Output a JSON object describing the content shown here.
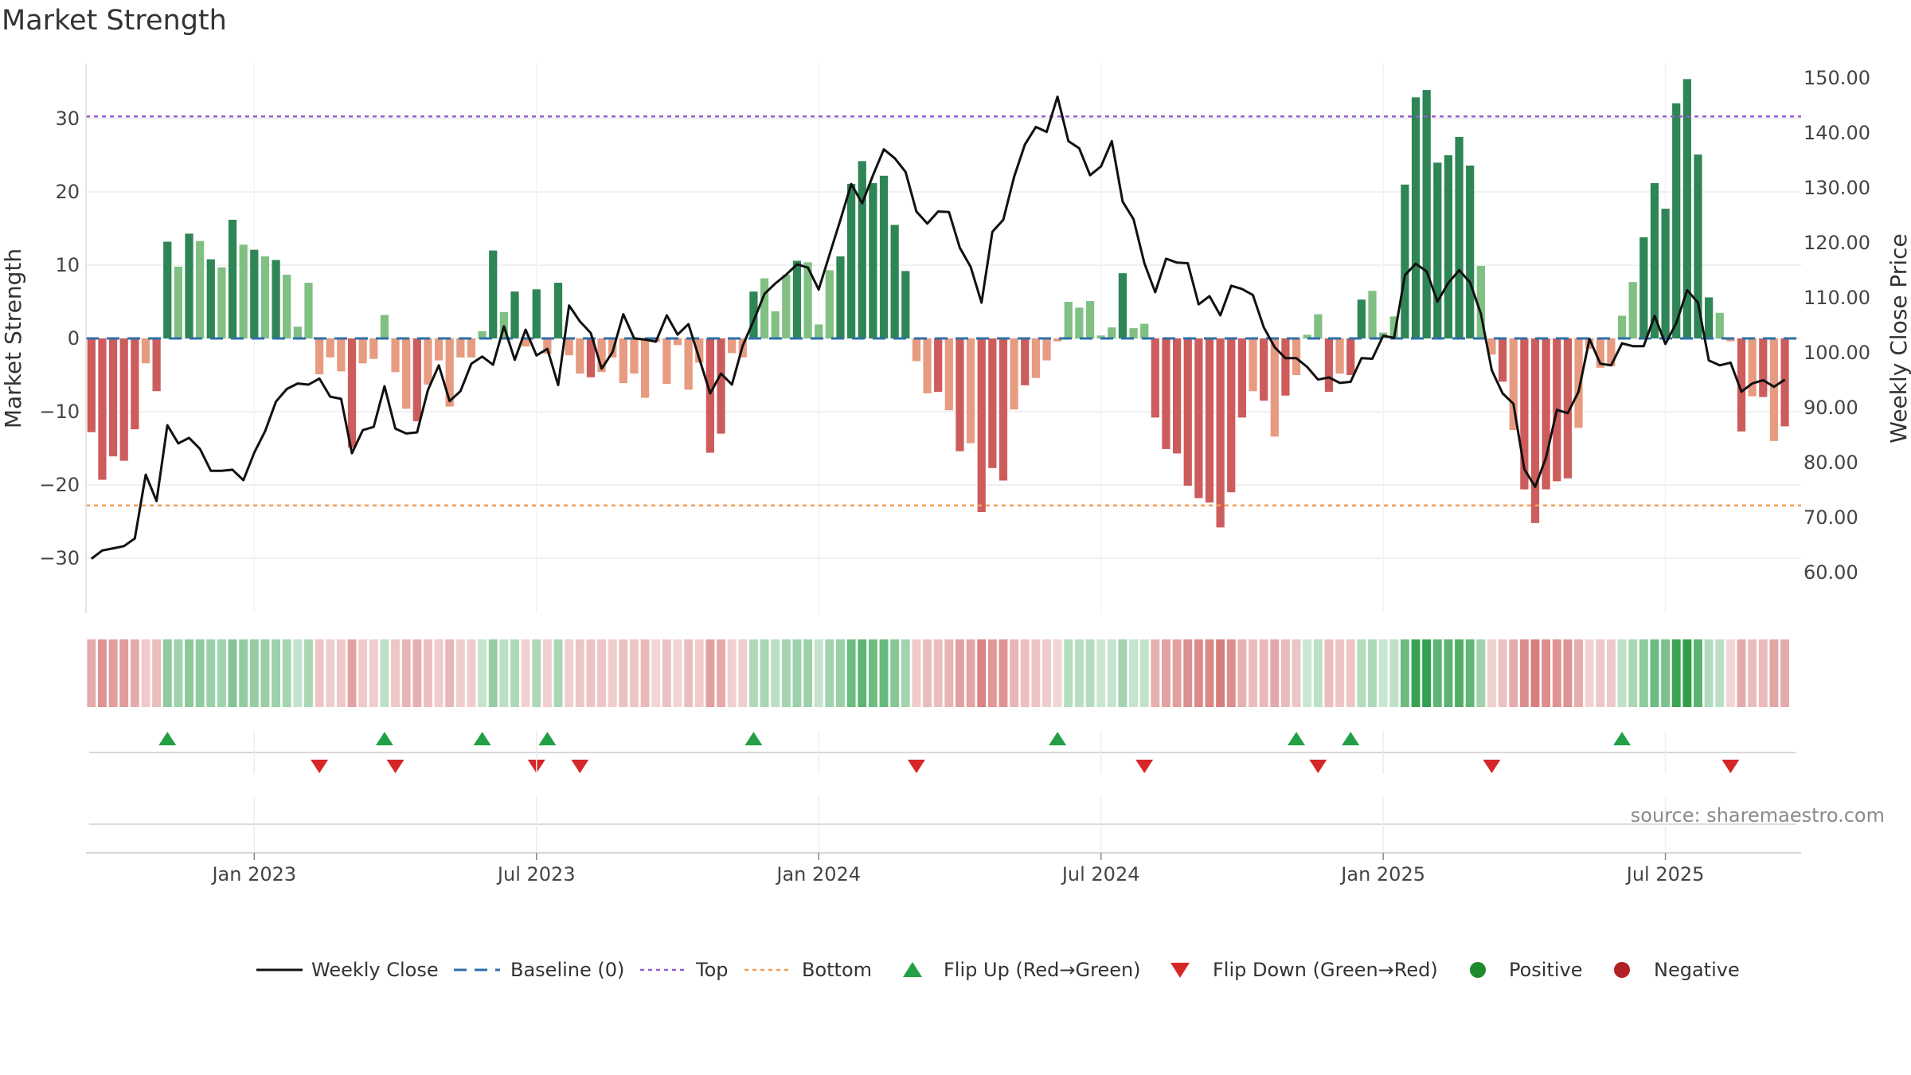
{
  "source_label": "source: sharemaestro.com",
  "chart_data": {
    "type": "bar",
    "title": "Market Strength",
    "ylabel": "Market Strength",
    "y2label": "Weekly Close Price",
    "ylim": [
      -37.5,
      37.5
    ],
    "y2lim": [
      52.6,
      152.6
    ],
    "y_ticks": [
      "30",
      "20",
      "10",
      "0",
      "−10",
      "−20",
      "−30"
    ],
    "y_tick_values": [
      30,
      20,
      10,
      0,
      -10,
      -20,
      -30
    ],
    "y2_ticks": [
      "150.00",
      "140.00",
      "130.00",
      "120.00",
      "110.00",
      "100.00",
      "90.00",
      "80.00",
      "70.00",
      "60.00"
    ],
    "y2_tick_values": [
      150,
      140,
      130,
      120,
      110,
      100,
      90,
      80,
      70,
      60
    ],
    "x_ticks": [
      "Jan 2023",
      "Jul 2023",
      "Jan 2024",
      "Jul 2024",
      "Jan 2025",
      "Jul 2025"
    ],
    "x_tick_weeks": [
      15,
      41,
      67,
      93,
      119,
      145
    ],
    "top_level": 30.3,
    "bottom_level": -22.8,
    "weeks": 158,
    "strength": [
      -12.8,
      -19.3,
      -16.1,
      -16.7,
      -12.4,
      -3.4,
      -7.2,
      13.2,
      9.8,
      14.3,
      13.3,
      10.8,
      9.7,
      16.2,
      12.8,
      12.1,
      11.2,
      10.7,
      8.7,
      1.6,
      7.6,
      -4.9,
      -2.6,
      -4.5,
      -14.9,
      -3.4,
      -2.8,
      3.2,
      -4.6,
      -9.6,
      -11.3,
      -6.3,
      -3.0,
      -9.3,
      -2.6,
      -2.6,
      1.0,
      12.0,
      3.6,
      6.4,
      -1.1,
      6.7,
      -2.1,
      7.6,
      -2.3,
      -4.8,
      -5.3,
      -4.6,
      -2.6,
      -6.1,
      -4.8,
      -8.1,
      -0.5,
      -6.2,
      -0.9,
      -7.0,
      -3.3,
      -15.6,
      -13.0,
      -2.0,
      -2.6,
      6.4,
      8.2,
      3.7,
      8.7,
      10.6,
      10.4,
      1.9,
      9.3,
      11.2,
      21.1,
      24.2,
      21.2,
      22.2,
      15.5,
      9.2,
      -3.1,
      -7.5,
      -7.3,
      -9.8,
      -15.4,
      -14.3,
      -23.7,
      -17.7,
      -19.4,
      -9.7,
      -6.4,
      -5.4,
      -3.0,
      -0.4,
      5.0,
      4.2,
      5.1,
      0.4,
      1.5,
      8.9,
      1.4,
      2.0,
      -10.8,
      -15.1,
      -15.7,
      -20.1,
      -21.8,
      -22.4,
      -25.8,
      -21.0,
      -10.8,
      -7.2,
      -8.5,
      -13.4,
      -7.8,
      -5.0,
      0.5,
      3.3,
      -7.3,
      -4.8,
      -5.0,
      5.3,
      6.5,
      0.8,
      3.0,
      21.0,
      32.9,
      33.9,
      24.0,
      25.0,
      27.5,
      23.6,
      9.9,
      -2.2,
      -5.9,
      -12.5,
      -20.6,
      -25.2,
      -20.6,
      -19.5,
      -19.1,
      -12.2,
      -1.4,
      -4.0,
      -3.8,
      3.1,
      7.7,
      13.8,
      21.2,
      17.7,
      32.1,
      35.4,
      25.1,
      5.6,
      3.5,
      -0.4,
      -12.7,
      -7.9,
      -8.0,
      -14.0,
      -12.0
    ],
    "close": [
      62.5,
      64.0,
      64.4,
      64.8,
      66.2,
      77.8,
      73.0,
      86.8,
      83.5,
      84.5,
      82.5,
      78.5,
      78.5,
      78.7,
      76.8,
      81.8,
      85.7,
      91.1,
      93.4,
      94.4,
      94.2,
      95.3,
      92.0,
      91.6,
      81.7,
      85.9,
      86.5,
      93.9,
      86.2,
      85.3,
      85.5,
      93.2,
      97.7,
      91.2,
      93.0,
      98.0,
      99.3,
      97.8,
      104.8,
      98.7,
      104.2,
      99.5,
      100.7,
      94.1,
      108.6,
      105.7,
      103.6,
      97.1,
      100.1,
      107.0,
      102.6,
      102.4,
      102.0,
      106.8,
      103.3,
      105.2,
      98.9,
      92.6,
      96.2,
      94.2,
      101.3,
      105.8,
      110.7,
      112.6,
      114.2,
      116.1,
      115.5,
      111.5,
      117.9,
      124.2,
      130.7,
      127.2,
      132.3,
      137.0,
      135.4,
      132.9,
      125.7,
      123.5,
      125.7,
      125.6,
      119.1,
      115.6,
      109.1,
      122.0,
      124.2,
      132.0,
      137.9,
      141.1,
      140.2,
      146.6,
      138.5,
      137.2,
      132.3,
      133.9,
      138.5,
      127.5,
      124.3,
      116.3,
      111.0,
      117.1,
      116.4,
      116.3,
      108.8,
      110.3,
      106.8,
      112.2,
      111.6,
      110.5,
      104.6,
      101.0,
      99.0,
      99.0,
      97.4,
      95.1,
      95.5,
      94.5,
      94.7,
      99.0,
      98.9,
      103.1,
      102.7,
      114.1,
      116.2,
      114.8,
      109.3,
      112.7,
      115.0,
      112.8,
      107.1,
      96.8,
      92.6,
      90.7,
      78.8,
      75.6,
      80.9,
      89.6,
      89.0,
      92.9,
      102.5,
      98.0,
      97.7,
      101.7,
      101.2,
      101.2,
      106.7,
      101.6,
      105.4,
      111.4,
      109.1,
      98.6,
      97.7,
      98.2,
      92.9,
      94.4,
      95.0,
      93.8,
      95.1
    ],
    "flip_up_weeks": [
      7,
      27,
      36,
      42,
      61,
      89,
      111,
      116,
      141
    ],
    "flip_down_weeks": [
      21,
      28,
      41,
      45,
      76,
      97,
      113,
      129,
      151
    ],
    "bar_colors": {
      "strong_positive": "#2e8555",
      "weak_positive": "#80c083",
      "strong_negative": "#cd5c5c",
      "weak_negative": "#e79b80"
    },
    "heat_colors": {
      "positive": "#2e9e4a",
      "negative": "#cd5c5c"
    },
    "line_color": "#111111",
    "baseline_color": "#2f6fa8",
    "top_color": "#9b59d0",
    "bottom_color": "#f0a05a",
    "flip_up_color": "#22a045",
    "flip_down_color": "#d62728",
    "positive_color": "#1e8a2e",
    "negative_color": "#b22222",
    "legend": {
      "close": "Weekly Close",
      "baseline": "Baseline (0)",
      "top": "Top",
      "bottom": "Bottom",
      "flip_up": "Flip Up (Red→Green)",
      "flip_down": "Flip Down (Green→Red)",
      "positive": "Positive",
      "negative": "Negative"
    }
  }
}
